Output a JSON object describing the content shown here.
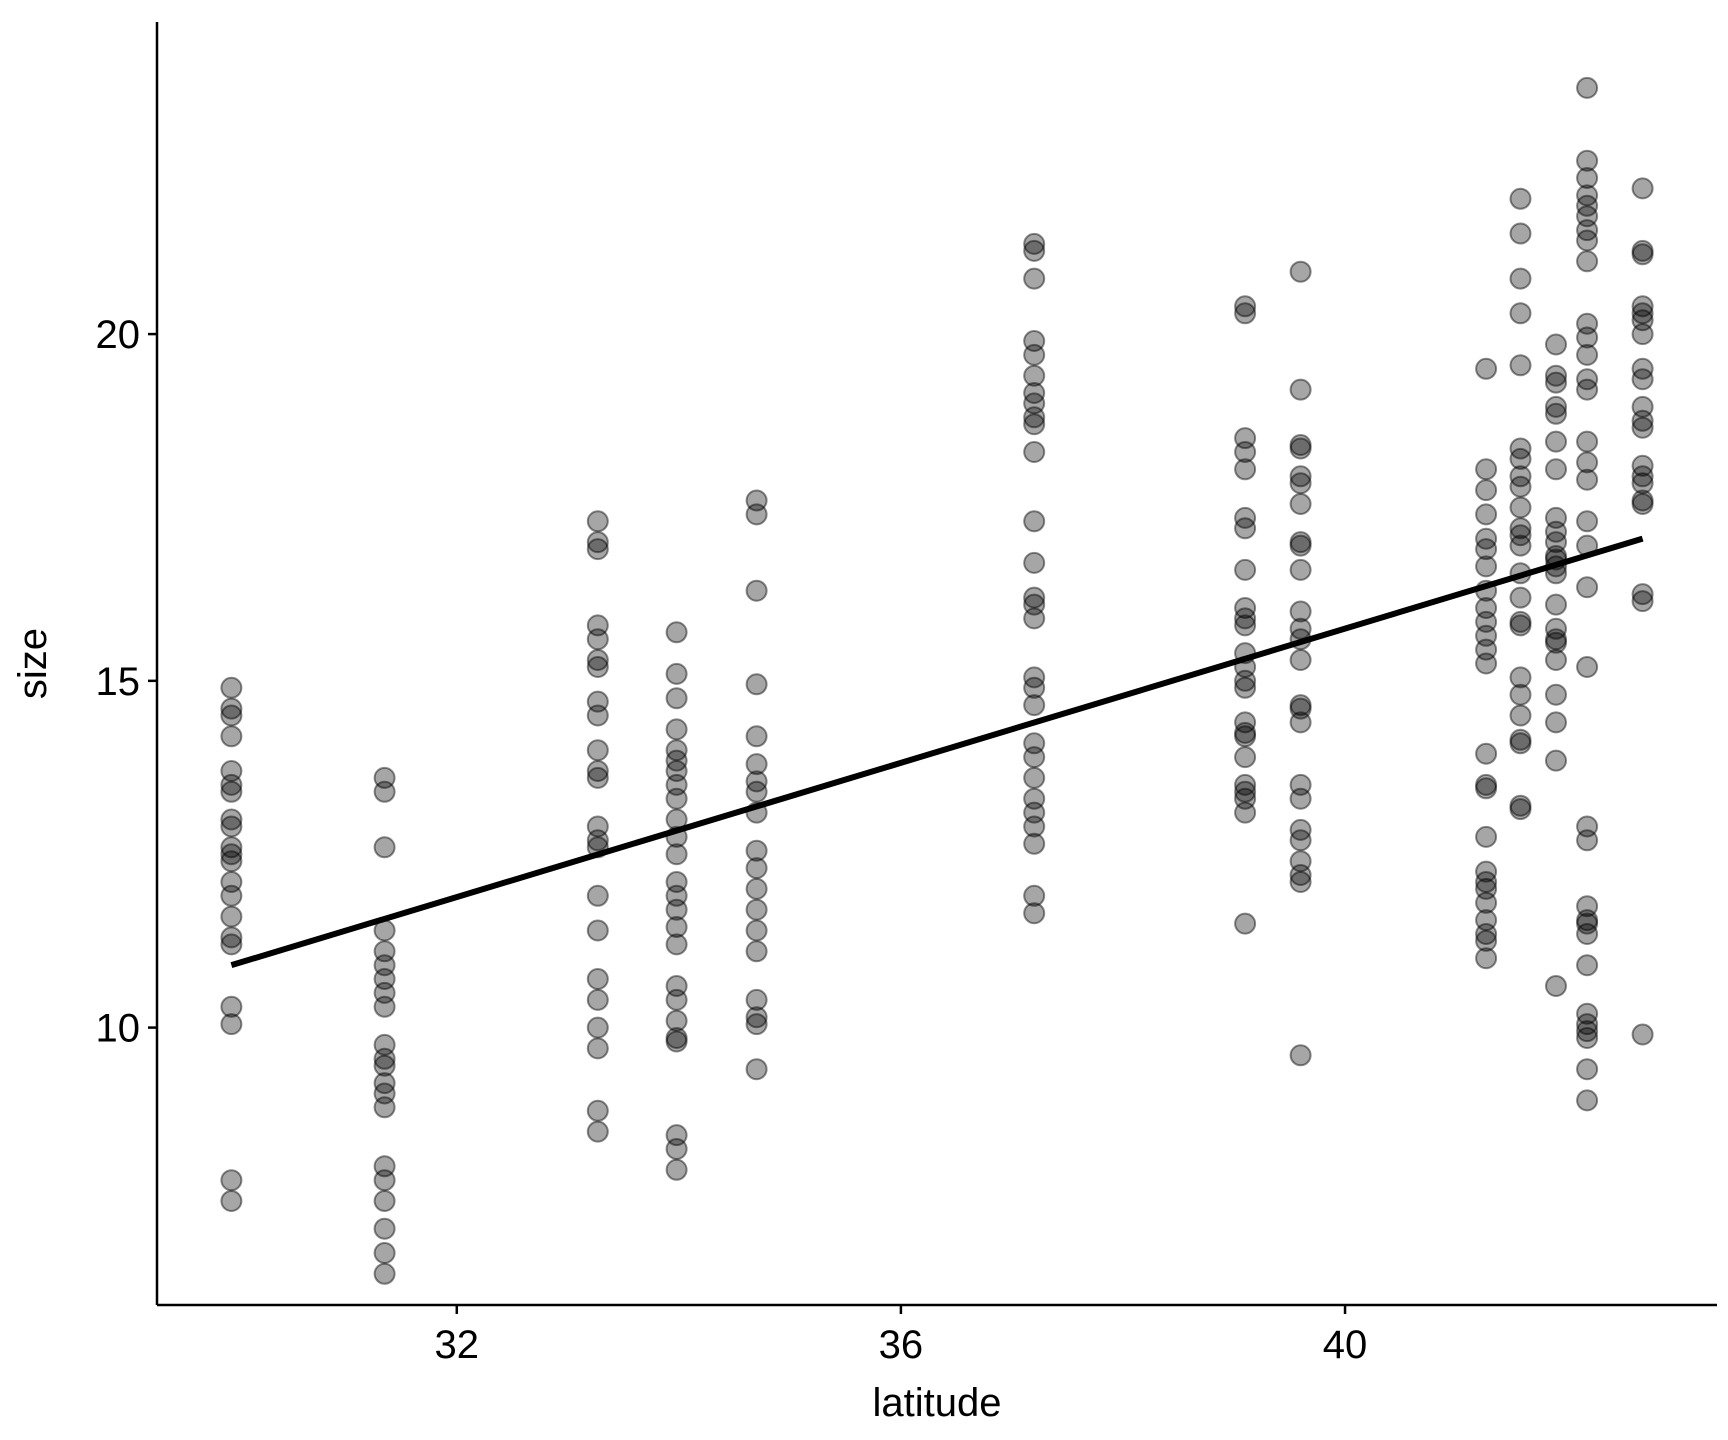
{
  "chart_data": {
    "type": "scatter",
    "title": "",
    "xlabel": "latitude",
    "ylabel": "size",
    "xlim": [
      29.3,
      43.35
    ],
    "ylim": [
      6.0,
      24.5
    ],
    "x_ticks": [
      32,
      36,
      40
    ],
    "y_ticks": [
      10,
      15,
      20
    ],
    "grid": false,
    "legend": "none",
    "point_color": "#000000",
    "point_opacity": 0.35,
    "line_color": "#000000",
    "trend_line": {
      "x": [
        29.97,
        42.68
      ],
      "y": [
        10.9,
        17.05
      ]
    },
    "series": [
      {
        "values": [
          [
            29.97,
            14.9
          ],
          [
            29.97,
            14.6
          ],
          [
            29.97,
            14.5
          ],
          [
            29.97,
            14.2
          ],
          [
            29.97,
            13.7
          ],
          [
            29.97,
            13.5
          ],
          [
            29.97,
            13.4
          ],
          [
            29.97,
            13.0
          ],
          [
            29.97,
            12.9
          ],
          [
            29.97,
            12.6
          ],
          [
            29.97,
            12.5
          ],
          [
            29.97,
            12.4
          ],
          [
            29.97,
            12.1
          ],
          [
            29.97,
            11.9
          ],
          [
            29.97,
            11.6
          ],
          [
            29.97,
            11.3
          ],
          [
            29.97,
            11.2
          ],
          [
            29.97,
            10.3
          ],
          [
            29.97,
            10.05
          ],
          [
            29.97,
            7.8
          ],
          [
            29.97,
            7.5
          ],
          [
            31.35,
            13.6
          ],
          [
            31.35,
            13.4
          ],
          [
            31.35,
            12.6
          ],
          [
            31.35,
            11.4
          ],
          [
            31.35,
            11.1
          ],
          [
            31.35,
            10.9
          ],
          [
            31.35,
            10.7
          ],
          [
            31.35,
            10.5
          ],
          [
            31.35,
            10.3
          ],
          [
            31.35,
            9.75
          ],
          [
            31.35,
            9.55
          ],
          [
            31.35,
            9.45
          ],
          [
            31.35,
            9.2
          ],
          [
            31.35,
            9.05
          ],
          [
            31.35,
            8.85
          ],
          [
            31.35,
            8.0
          ],
          [
            31.35,
            7.8
          ],
          [
            31.35,
            7.5
          ],
          [
            31.35,
            7.1
          ],
          [
            31.35,
            6.75
          ],
          [
            31.35,
            6.45
          ],
          [
            33.27,
            17.3
          ],
          [
            33.27,
            17.0
          ],
          [
            33.27,
            16.9
          ],
          [
            33.27,
            15.8
          ],
          [
            33.27,
            15.6
          ],
          [
            33.27,
            15.3
          ],
          [
            33.27,
            15.2
          ],
          [
            33.27,
            14.7
          ],
          [
            33.27,
            14.5
          ],
          [
            33.27,
            14.0
          ],
          [
            33.27,
            13.7
          ],
          [
            33.27,
            13.6
          ],
          [
            33.27,
            12.9
          ],
          [
            33.27,
            12.7
          ],
          [
            33.27,
            12.6
          ],
          [
            33.27,
            11.9
          ],
          [
            33.27,
            11.4
          ],
          [
            33.27,
            10.7
          ],
          [
            33.27,
            10.4
          ],
          [
            33.27,
            10.0
          ],
          [
            33.27,
            9.7
          ],
          [
            33.27,
            8.8
          ],
          [
            33.27,
            8.5
          ],
          [
            33.98,
            15.7
          ],
          [
            33.98,
            15.1
          ],
          [
            33.98,
            14.75
          ],
          [
            33.98,
            14.3
          ],
          [
            33.98,
            14.0
          ],
          [
            33.98,
            13.85
          ],
          [
            33.98,
            13.7
          ],
          [
            33.98,
            13.5
          ],
          [
            33.98,
            13.3
          ],
          [
            33.98,
            13.0
          ],
          [
            33.98,
            12.75
          ],
          [
            33.98,
            12.5
          ],
          [
            33.98,
            12.1
          ],
          [
            33.98,
            11.9
          ],
          [
            33.98,
            11.7
          ],
          [
            33.98,
            11.45
          ],
          [
            33.98,
            11.2
          ],
          [
            33.98,
            10.6
          ],
          [
            33.98,
            10.4
          ],
          [
            33.98,
            10.1
          ],
          [
            33.98,
            9.85
          ],
          [
            33.98,
            9.8
          ],
          [
            33.98,
            8.45
          ],
          [
            33.98,
            8.25
          ],
          [
            33.98,
            7.95
          ],
          [
            34.7,
            17.6
          ],
          [
            34.7,
            17.4
          ],
          [
            34.7,
            16.3
          ],
          [
            34.7,
            14.95
          ],
          [
            34.7,
            14.2
          ],
          [
            34.7,
            13.8
          ],
          [
            34.7,
            13.55
          ],
          [
            34.7,
            13.4
          ],
          [
            34.7,
            13.1
          ],
          [
            34.7,
            12.55
          ],
          [
            34.7,
            12.3
          ],
          [
            34.7,
            12.0
          ],
          [
            34.7,
            11.7
          ],
          [
            34.7,
            11.4
          ],
          [
            34.7,
            11.1
          ],
          [
            34.7,
            10.4
          ],
          [
            34.7,
            10.15
          ],
          [
            34.7,
            10.05
          ],
          [
            34.7,
            9.4
          ],
          [
            37.2,
            21.3
          ],
          [
            37.2,
            21.2
          ],
          [
            37.2,
            20.8
          ],
          [
            37.2,
            19.9
          ],
          [
            37.2,
            19.7
          ],
          [
            37.2,
            19.4
          ],
          [
            37.2,
            19.15
          ],
          [
            37.2,
            19.0
          ],
          [
            37.2,
            18.8
          ],
          [
            37.2,
            18.7
          ],
          [
            37.2,
            18.3
          ],
          [
            37.2,
            17.3
          ],
          [
            37.2,
            16.7
          ],
          [
            37.2,
            16.2
          ],
          [
            37.2,
            16.1
          ],
          [
            37.2,
            15.9
          ],
          [
            37.2,
            15.05
          ],
          [
            37.2,
            14.9
          ],
          [
            37.2,
            14.65
          ],
          [
            37.2,
            14.1
          ],
          [
            37.2,
            13.9
          ],
          [
            37.2,
            13.6
          ],
          [
            37.2,
            13.3
          ],
          [
            37.2,
            13.1
          ],
          [
            37.2,
            12.9
          ],
          [
            37.2,
            12.65
          ],
          [
            37.2,
            11.9
          ],
          [
            37.2,
            11.65
          ],
          [
            39.1,
            20.4
          ],
          [
            39.1,
            20.3
          ],
          [
            39.1,
            18.5
          ],
          [
            39.1,
            18.3
          ],
          [
            39.1,
            18.05
          ],
          [
            39.1,
            17.35
          ],
          [
            39.1,
            17.2
          ],
          [
            39.1,
            16.6
          ],
          [
            39.1,
            16.05
          ],
          [
            39.1,
            15.9
          ],
          [
            39.1,
            15.8
          ],
          [
            39.1,
            15.4
          ],
          [
            39.1,
            15.2
          ],
          [
            39.1,
            15.0
          ],
          [
            39.1,
            14.9
          ],
          [
            39.1,
            14.4
          ],
          [
            39.1,
            14.25
          ],
          [
            39.1,
            14.2
          ],
          [
            39.1,
            13.9
          ],
          [
            39.1,
            13.5
          ],
          [
            39.1,
            13.4
          ],
          [
            39.1,
            13.3
          ],
          [
            39.1,
            13.1
          ],
          [
            39.1,
            11.5
          ],
          [
            39.6,
            20.9
          ],
          [
            39.6,
            19.2
          ],
          [
            39.6,
            18.4
          ],
          [
            39.6,
            18.35
          ],
          [
            39.6,
            17.95
          ],
          [
            39.6,
            17.85
          ],
          [
            39.6,
            17.55
          ],
          [
            39.6,
            17.0
          ],
          [
            39.6,
            16.95
          ],
          [
            39.6,
            16.6
          ],
          [
            39.6,
            16.0
          ],
          [
            39.6,
            15.75
          ],
          [
            39.6,
            15.6
          ],
          [
            39.6,
            15.3
          ],
          [
            39.6,
            14.65
          ],
          [
            39.6,
            14.6
          ],
          [
            39.6,
            14.4
          ],
          [
            39.6,
            13.5
          ],
          [
            39.6,
            13.3
          ],
          [
            39.6,
            12.85
          ],
          [
            39.6,
            12.7
          ],
          [
            39.6,
            12.4
          ],
          [
            39.6,
            12.2
          ],
          [
            39.6,
            12.1
          ],
          [
            39.6,
            9.6
          ],
          [
            41.27,
            19.5
          ],
          [
            41.27,
            18.05
          ],
          [
            41.27,
            17.75
          ],
          [
            41.27,
            17.4
          ],
          [
            41.27,
            17.05
          ],
          [
            41.27,
            16.9
          ],
          [
            41.27,
            16.65
          ],
          [
            41.27,
            16.3
          ],
          [
            41.27,
            16.05
          ],
          [
            41.27,
            15.85
          ],
          [
            41.27,
            15.65
          ],
          [
            41.27,
            15.45
          ],
          [
            41.27,
            15.25
          ],
          [
            41.27,
            13.95
          ],
          [
            41.27,
            13.5
          ],
          [
            41.27,
            13.45
          ],
          [
            41.27,
            12.75
          ],
          [
            41.27,
            12.25
          ],
          [
            41.27,
            12.1
          ],
          [
            41.27,
            12.0
          ],
          [
            41.27,
            11.8
          ],
          [
            41.27,
            11.55
          ],
          [
            41.27,
            11.35
          ],
          [
            41.27,
            11.25
          ],
          [
            41.27,
            11.0
          ],
          [
            41.58,
            21.95
          ],
          [
            41.58,
            21.45
          ],
          [
            41.58,
            20.8
          ],
          [
            41.58,
            20.3
          ],
          [
            41.58,
            19.55
          ],
          [
            41.58,
            18.35
          ],
          [
            41.58,
            18.2
          ],
          [
            41.58,
            17.95
          ],
          [
            41.58,
            17.8
          ],
          [
            41.58,
            17.5
          ],
          [
            41.58,
            17.2
          ],
          [
            41.58,
            17.1
          ],
          [
            41.58,
            16.95
          ],
          [
            41.58,
            16.55
          ],
          [
            41.58,
            16.2
          ],
          [
            41.58,
            15.85
          ],
          [
            41.58,
            15.8
          ],
          [
            41.58,
            15.05
          ],
          [
            41.58,
            14.8
          ],
          [
            41.58,
            14.5
          ],
          [
            41.58,
            14.15
          ],
          [
            41.58,
            14.1
          ],
          [
            41.58,
            13.2
          ],
          [
            41.58,
            13.15
          ],
          [
            41.9,
            19.85
          ],
          [
            41.9,
            19.4
          ],
          [
            41.9,
            19.3
          ],
          [
            41.9,
            18.95
          ],
          [
            41.9,
            18.85
          ],
          [
            41.9,
            18.45
          ],
          [
            41.9,
            18.05
          ],
          [
            41.9,
            17.35
          ],
          [
            41.9,
            17.15
          ],
          [
            41.9,
            17.0
          ],
          [
            41.9,
            16.8
          ],
          [
            41.9,
            16.75
          ],
          [
            41.9,
            16.65
          ],
          [
            41.9,
            16.55
          ],
          [
            41.9,
            16.1
          ],
          [
            41.9,
            15.75
          ],
          [
            41.9,
            15.6
          ],
          [
            41.9,
            15.55
          ],
          [
            41.9,
            15.3
          ],
          [
            41.9,
            14.8
          ],
          [
            41.9,
            14.4
          ],
          [
            41.9,
            13.85
          ],
          [
            41.9,
            10.6
          ],
          [
            42.18,
            23.55
          ],
          [
            42.18,
            22.5
          ],
          [
            42.18,
            22.25
          ],
          [
            42.18,
            22.0
          ],
          [
            42.18,
            21.85
          ],
          [
            42.18,
            21.7
          ],
          [
            42.18,
            21.5
          ],
          [
            42.18,
            21.35
          ],
          [
            42.18,
            21.05
          ],
          [
            42.18,
            20.15
          ],
          [
            42.18,
            19.95
          ],
          [
            42.18,
            19.7
          ],
          [
            42.18,
            19.35
          ],
          [
            42.18,
            19.2
          ],
          [
            42.18,
            18.45
          ],
          [
            42.18,
            18.15
          ],
          [
            42.18,
            17.9
          ],
          [
            42.18,
            17.3
          ],
          [
            42.18,
            16.95
          ],
          [
            42.18,
            16.35
          ],
          [
            42.18,
            15.2
          ],
          [
            42.18,
            12.9
          ],
          [
            42.18,
            12.7
          ],
          [
            42.18,
            11.75
          ],
          [
            42.18,
            11.55
          ],
          [
            42.18,
            11.5
          ],
          [
            42.18,
            11.35
          ],
          [
            42.18,
            10.9
          ],
          [
            42.18,
            10.2
          ],
          [
            42.18,
            10.05
          ],
          [
            42.18,
            9.95
          ],
          [
            42.18,
            9.85
          ],
          [
            42.18,
            9.4
          ],
          [
            42.18,
            8.95
          ],
          [
            42.68,
            22.1
          ],
          [
            42.68,
            21.2
          ],
          [
            42.68,
            21.15
          ],
          [
            42.68,
            20.4
          ],
          [
            42.68,
            20.3
          ],
          [
            42.68,
            20.2
          ],
          [
            42.68,
            20.0
          ],
          [
            42.68,
            19.5
          ],
          [
            42.68,
            19.35
          ],
          [
            42.68,
            18.95
          ],
          [
            42.68,
            18.75
          ],
          [
            42.68,
            18.65
          ],
          [
            42.68,
            18.1
          ],
          [
            42.68,
            17.95
          ],
          [
            42.68,
            17.85
          ],
          [
            42.68,
            17.6
          ],
          [
            42.68,
            17.55
          ],
          [
            42.68,
            16.25
          ],
          [
            42.68,
            16.15
          ],
          [
            42.68,
            9.9
          ]
        ]
      }
    ]
  }
}
